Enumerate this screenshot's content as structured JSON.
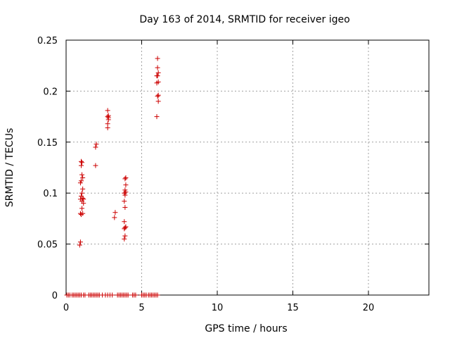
{
  "chart_data": {
    "type": "scatter",
    "title": "Day 163 of 2014, SRMTID for receiver igeo",
    "xlabel": "GPS time / hours",
    "ylabel": "SRMTID / TECUs",
    "xlim": [
      0,
      24
    ],
    "ylim": [
      0,
      0.25
    ],
    "xticks": [
      0,
      5,
      10,
      15,
      20
    ],
    "yticks": [
      0,
      0.05,
      0.1,
      0.15,
      0.2,
      0.25
    ],
    "xtick_labels": [
      "0",
      "5",
      "10",
      "15",
      "20"
    ],
    "ytick_labels": [
      "0",
      "0.05",
      "0.1",
      "0.15",
      "0.2",
      "0.25"
    ],
    "grid": true,
    "marker": "plus",
    "color": "#cc0000",
    "points": [
      [
        0.05,
        0
      ],
      [
        0.15,
        0
      ],
      [
        0.25,
        0
      ],
      [
        0.4,
        0
      ],
      [
        0.5,
        0
      ],
      [
        0.6,
        0
      ],
      [
        0.7,
        0
      ],
      [
        0.8,
        0
      ],
      [
        0.9,
        0
      ],
      [
        1.0,
        0
      ],
      [
        1.15,
        0
      ],
      [
        1.25,
        0
      ],
      [
        1.5,
        0
      ],
      [
        1.6,
        0
      ],
      [
        1.7,
        0
      ],
      [
        1.8,
        0
      ],
      [
        1.9,
        0
      ],
      [
        2.0,
        0
      ],
      [
        2.1,
        0
      ],
      [
        2.2,
        0
      ],
      [
        2.4,
        0
      ],
      [
        2.6,
        0
      ],
      [
        2.75,
        0
      ],
      [
        2.9,
        0
      ],
      [
        3.05,
        0
      ],
      [
        3.4,
        0
      ],
      [
        3.5,
        0
      ],
      [
        3.6,
        0
      ],
      [
        3.7,
        0
      ],
      [
        3.8,
        0
      ],
      [
        3.9,
        0
      ],
      [
        4.0,
        0
      ],
      [
        4.1,
        0
      ],
      [
        4.4,
        0
      ],
      [
        4.5,
        0
      ],
      [
        4.6,
        0
      ],
      [
        5.0,
        0
      ],
      [
        5.1,
        0
      ],
      [
        5.2,
        0
      ],
      [
        5.3,
        0
      ],
      [
        5.45,
        0
      ],
      [
        5.55,
        0
      ],
      [
        5.65,
        0
      ],
      [
        5.75,
        0
      ],
      [
        5.85,
        0
      ],
      [
        5.95,
        0
      ],
      [
        6.05,
        0
      ],
      [
        0.9,
        0.049
      ],
      [
        0.95,
        0.052
      ],
      [
        0.95,
        0.08
      ],
      [
        1.0,
        0.079
      ],
      [
        1.05,
        0.085
      ],
      [
        1.1,
        0.08
      ],
      [
        1.15,
        0.09
      ],
      [
        1.05,
        0.092
      ],
      [
        0.95,
        0.094
      ],
      [
        1.1,
        0.095
      ],
      [
        1.15,
        0.094
      ],
      [
        1.0,
        0.097
      ],
      [
        1.05,
        0.1
      ],
      [
        1.1,
        0.104
      ],
      [
        0.95,
        0.11
      ],
      [
        1.0,
        0.112
      ],
      [
        1.1,
        0.115
      ],
      [
        1.05,
        0.118
      ],
      [
        1.0,
        0.127
      ],
      [
        1.05,
        0.13
      ],
      [
        1.0,
        0.131
      ],
      [
        1.95,
        0.127
      ],
      [
        1.95,
        0.145
      ],
      [
        2.0,
        0.148
      ],
      [
        2.75,
        0.164
      ],
      [
        2.75,
        0.168
      ],
      [
        2.8,
        0.172
      ],
      [
        2.75,
        0.175
      ],
      [
        2.8,
        0.176
      ],
      [
        2.75,
        0.181
      ],
      [
        2.8,
        0.174
      ],
      [
        3.2,
        0.076
      ],
      [
        3.25,
        0.081
      ],
      [
        3.85,
        0.055
      ],
      [
        3.9,
        0.058
      ],
      [
        3.85,
        0.065
      ],
      [
        3.9,
        0.066
      ],
      [
        3.95,
        0.067
      ],
      [
        3.85,
        0.072
      ],
      [
        3.9,
        0.086
      ],
      [
        3.85,
        0.092
      ],
      [
        3.9,
        0.098
      ],
      [
        3.85,
        0.1
      ],
      [
        3.95,
        0.101
      ],
      [
        3.9,
        0.103
      ],
      [
        3.95,
        0.108
      ],
      [
        3.9,
        0.114
      ],
      [
        3.95,
        0.115
      ],
      [
        6.0,
        0.175
      ],
      [
        6.1,
        0.19
      ],
      [
        6.05,
        0.195
      ],
      [
        6.1,
        0.196
      ],
      [
        6.0,
        0.208
      ],
      [
        6.1,
        0.209
      ],
      [
        6.05,
        0.215
      ],
      [
        6.0,
        0.215
      ],
      [
        6.1,
        0.218
      ],
      [
        6.05,
        0.223
      ],
      [
        6.05,
        0.232
      ]
    ]
  }
}
